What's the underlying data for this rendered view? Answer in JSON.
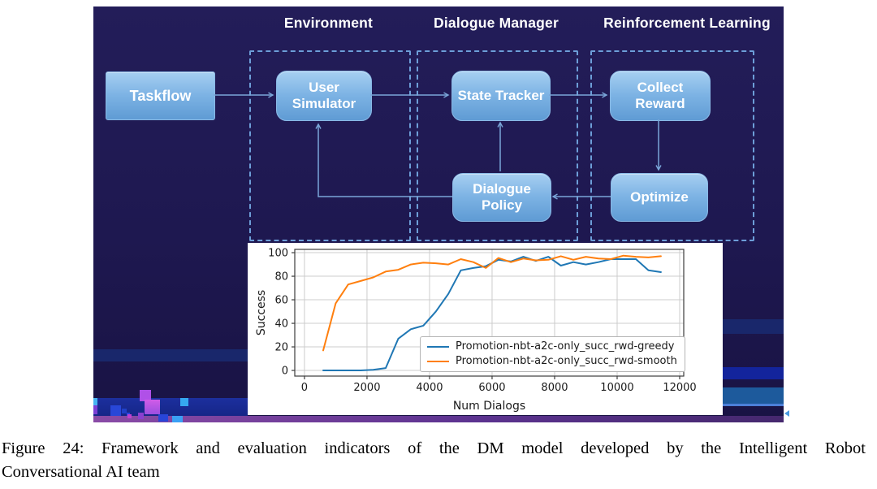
{
  "slide": {
    "sections": [
      {
        "title": "Environment"
      },
      {
        "title": "Dialogue Manager"
      },
      {
        "title": "Reinforcement Learning"
      }
    ],
    "nodes": [
      {
        "id": "taskflow",
        "label": "Taskflow"
      },
      {
        "id": "user-simulator",
        "label": "User Simulator"
      },
      {
        "id": "state-tracker",
        "label": "State Tracker"
      },
      {
        "id": "collect-reward",
        "label": "Collect Reward"
      },
      {
        "id": "dialogue-policy",
        "label": "Dialogue Policy"
      },
      {
        "id": "optimize",
        "label": "Optimize"
      }
    ],
    "node_fill_top": "#a6cff1",
    "node_fill_bottom": "#5f9bd4",
    "arrow_color": "#7aa6d9"
  },
  "chart_data": {
    "type": "line",
    "title": "",
    "xlabel": "Num Dialogs",
    "ylabel": "Success",
    "xlim": [
      -310,
      12130
    ],
    "ylim": [
      -4.8,
      102.8
    ],
    "x_ticks": [
      0,
      2000,
      4000,
      6000,
      8000,
      10000,
      12000
    ],
    "y_ticks": [
      0,
      20,
      40,
      60,
      80,
      100
    ],
    "grid": true,
    "legend_position": "lower right",
    "x": [
      600,
      1000,
      1400,
      1800,
      2200,
      2600,
      3000,
      3400,
      3800,
      4200,
      4600,
      5000,
      5400,
      5800,
      6200,
      6600,
      7000,
      7400,
      7800,
      8200,
      8600,
      9000,
      9400,
      9800,
      10200,
      10600,
      11000,
      11400
    ],
    "series": [
      {
        "name": "Promotion-nbt-a2c-only_succ_rwd-greedy",
        "color": "#1f77b4",
        "values": [
          0,
          0,
          0,
          0,
          0.5,
          2,
          27,
          35,
          38,
          50,
          65,
          85,
          87,
          88.5,
          94,
          92.5,
          96.5,
          93,
          96.5,
          89,
          92,
          90,
          92,
          94.5,
          94.5,
          94.5,
          85,
          83.5
        ]
      },
      {
        "name": "Promotion-nbt-a2c-only_succ_rwd-smooth",
        "color": "#ff7f0e",
        "values": [
          17,
          57,
          73,
          76,
          79,
          84,
          85.5,
          90,
          91.5,
          91,
          90,
          94.5,
          92,
          87,
          95.5,
          92,
          95,
          93.5,
          94,
          97,
          94,
          96.5,
          95,
          94.5,
          97.5,
          96.5,
          96,
          97
        ]
      }
    ]
  },
  "caption": {
    "line1": "Figure 24: Framework and evaluation indicators of the DM model developed by the Intelligent Robot",
    "line2": "Conversational AI team"
  }
}
